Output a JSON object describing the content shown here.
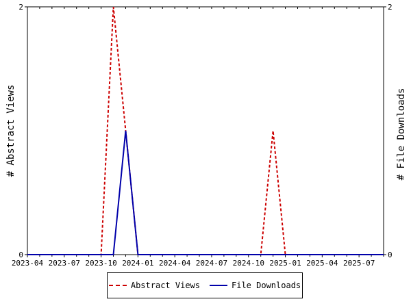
{
  "chart_data": {
    "type": "line",
    "x_ticks": [
      "2023-04",
      "2023-07",
      "2023-10",
      "2024-01",
      "2024-04",
      "2024-07",
      "2024-10",
      "2025-01",
      "2025-04",
      "2025-07"
    ],
    "x": [
      "2023-04",
      "2023-05",
      "2023-06",
      "2023-07",
      "2023-08",
      "2023-09",
      "2023-10",
      "2023-11",
      "2023-12",
      "2024-01",
      "2024-02",
      "2024-03",
      "2024-04",
      "2024-05",
      "2024-06",
      "2024-07",
      "2024-08",
      "2024-09",
      "2024-10",
      "2024-11",
      "2024-12",
      "2025-01",
      "2025-02",
      "2025-03",
      "2025-04",
      "2025-05",
      "2025-06",
      "2025-07",
      "2025-08",
      "2025-09"
    ],
    "series": [
      {
        "name": "Abstract Views",
        "color": "#cc0000",
        "style": "dashed",
        "axis": "left",
        "values": [
          0,
          0,
          0,
          0,
          0,
          0,
          0,
          2,
          1,
          0,
          0,
          0,
          0,
          0,
          0,
          0,
          0,
          0,
          0,
          0,
          1,
          0,
          0,
          0,
          0,
          0,
          0,
          0,
          0,
          0
        ]
      },
      {
        "name": "File Downloads",
        "color": "#0000aa",
        "style": "solid",
        "axis": "right",
        "values": [
          0,
          0,
          0,
          0,
          0,
          0,
          0,
          0,
          1,
          0,
          0,
          0,
          0,
          0,
          0,
          0,
          0,
          0,
          0,
          0,
          0,
          0,
          0,
          0,
          0,
          0,
          0,
          0,
          0,
          0
        ]
      }
    ],
    "y_left": {
      "label": "# Abstract Views",
      "ylim": [
        0,
        2
      ],
      "ticks": [
        "0",
        "2"
      ]
    },
    "y_right": {
      "label": "# File Downloads",
      "ylim": [
        0,
        2
      ],
      "ticks": [
        "0",
        "2"
      ]
    },
    "grid": false,
    "legend_position": "bottom"
  }
}
